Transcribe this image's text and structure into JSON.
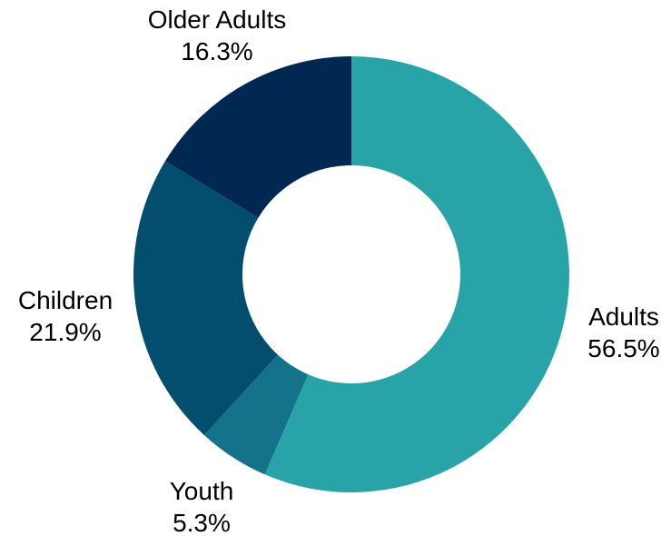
{
  "chart_data": {
    "type": "pie",
    "variant": "donut",
    "title": "",
    "slices": [
      {
        "label": "Adults",
        "value": 56.5,
        "value_label": "56.5%",
        "color": "#28a4a8"
      },
      {
        "label": "Youth",
        "value": 5.3,
        "value_label": "5.3%",
        "color": "#14728a"
      },
      {
        "label": "Children",
        "value": 21.9,
        "value_label": "21.9%",
        "color": "#034d6f"
      },
      {
        "label": "Older Adults",
        "value": 16.3,
        "value_label": "16.3%",
        "color": "#012753"
      }
    ]
  }
}
